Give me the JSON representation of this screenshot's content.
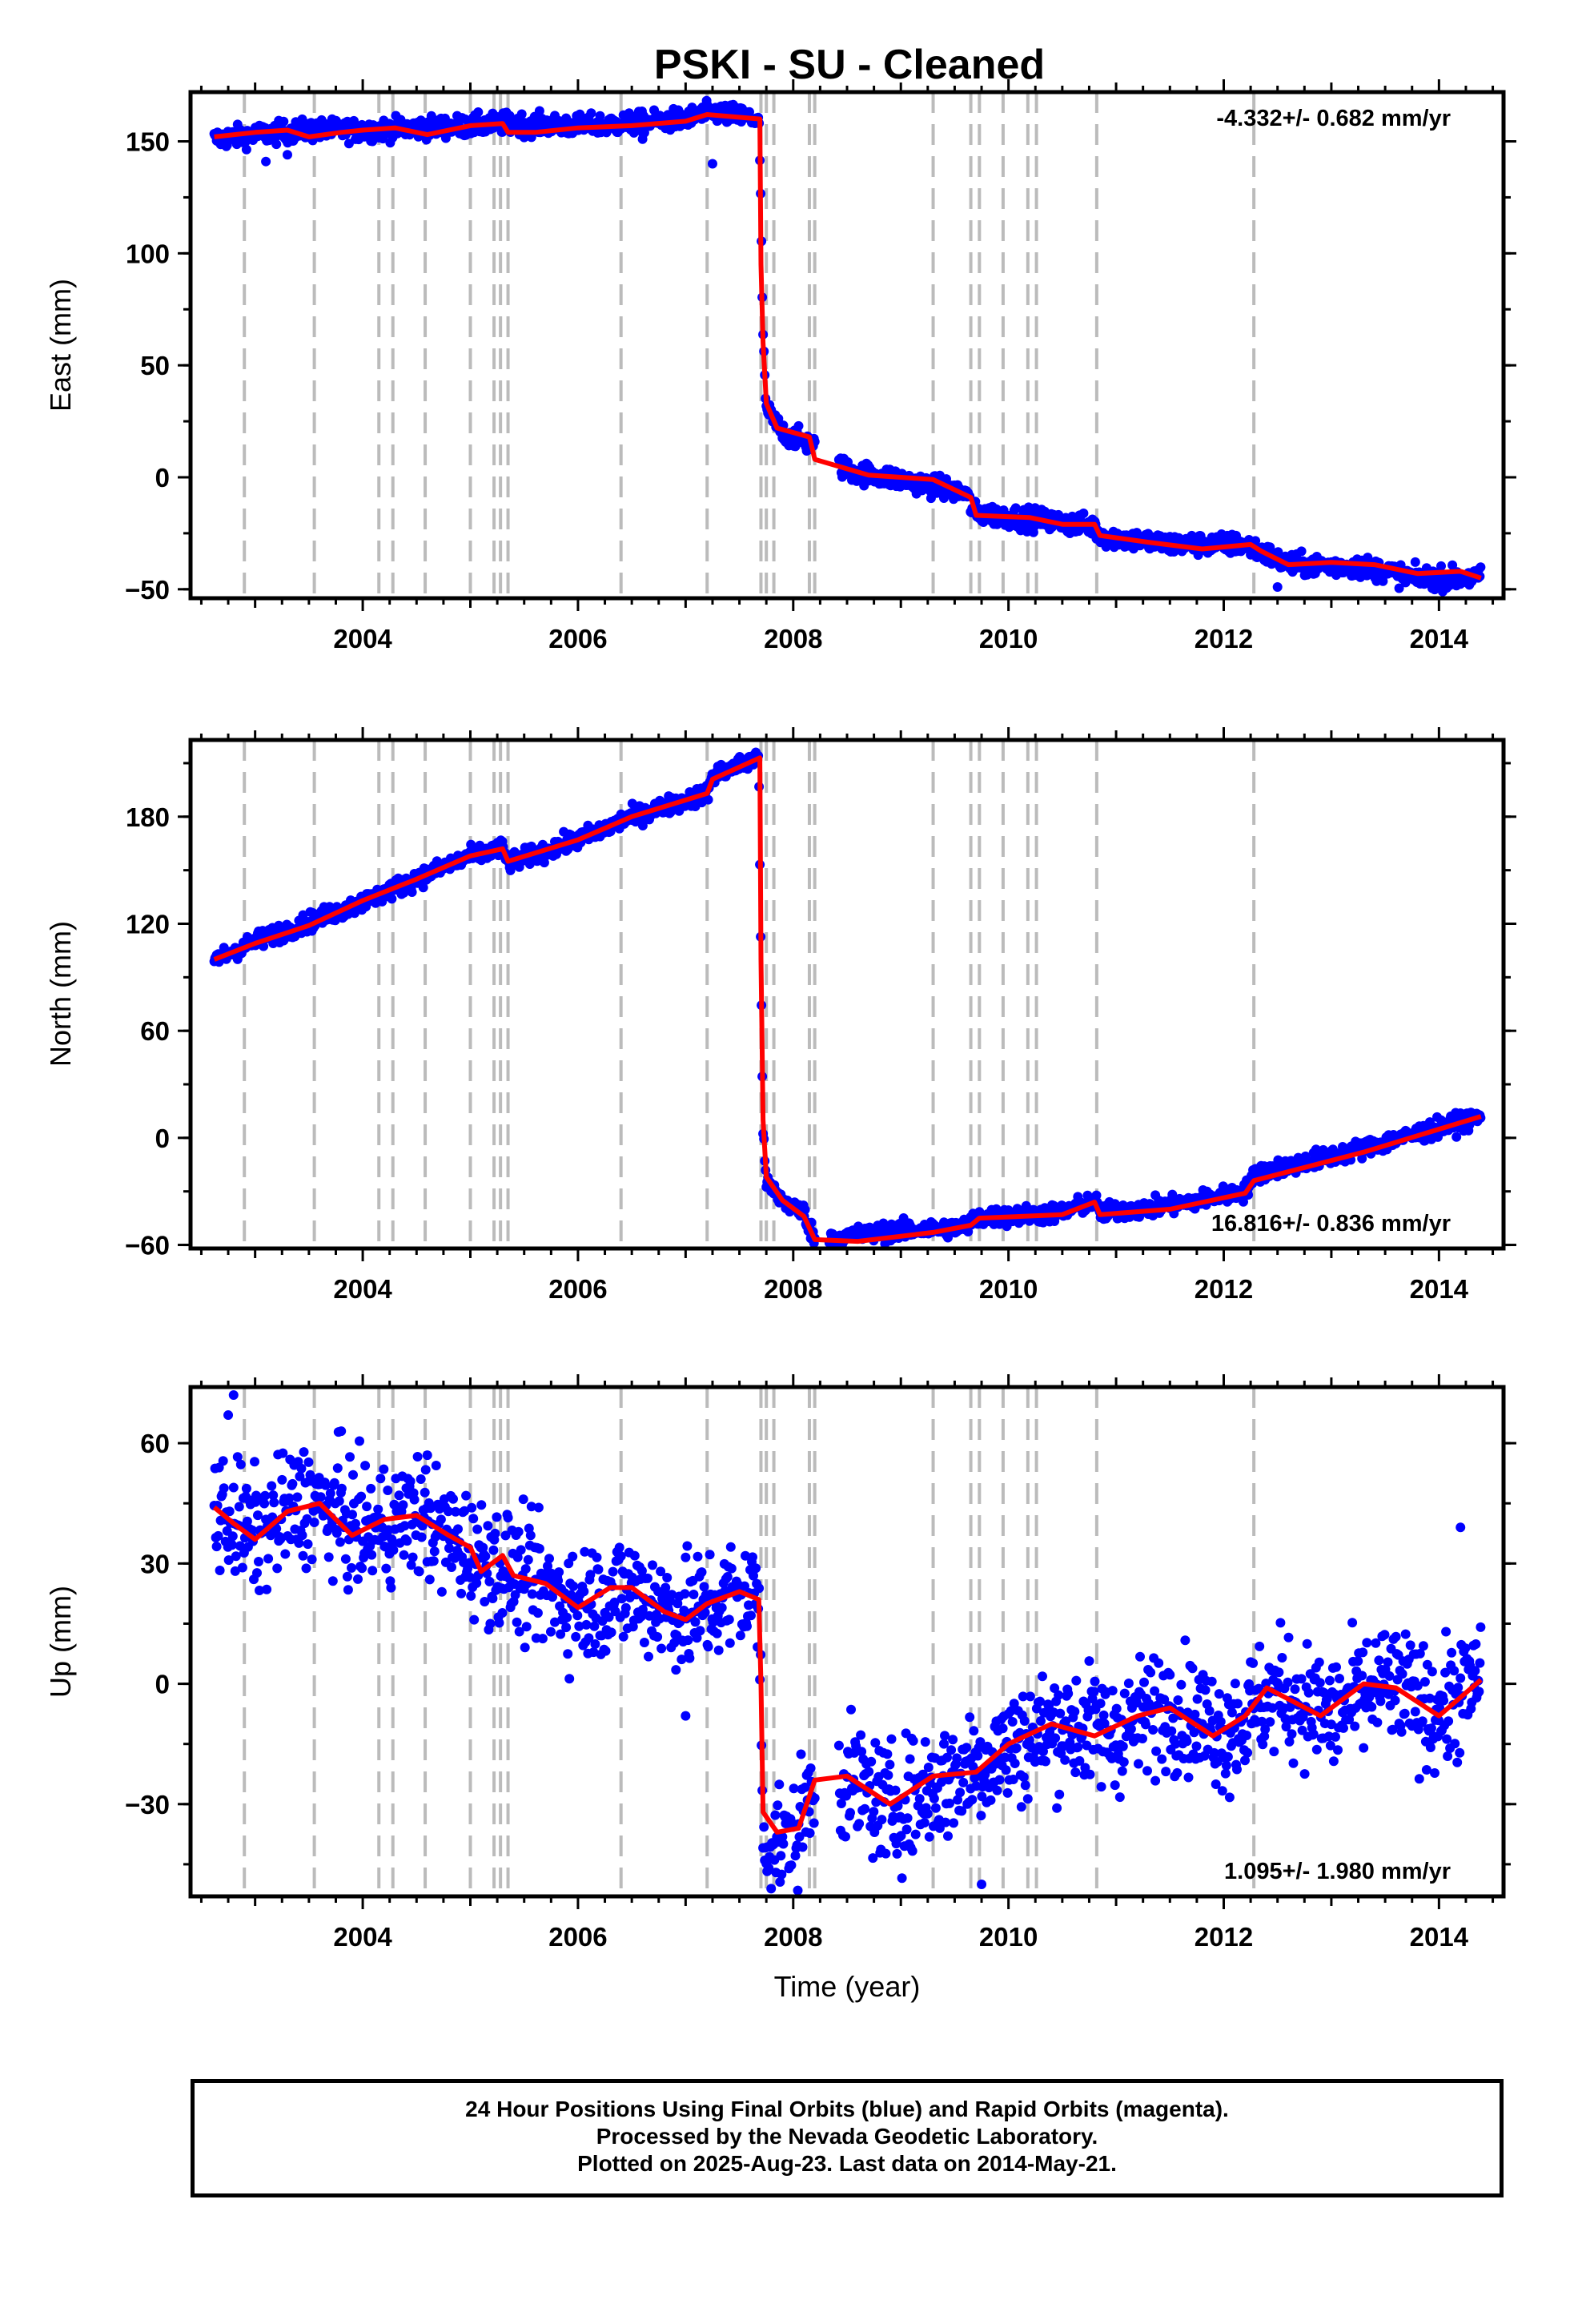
{
  "title": "PSKI  - SU - Cleaned",
  "colors": {
    "final": "#0000ff",
    "model": "#ff0000",
    "events": "#bbbbbb",
    "frame": "#000000"
  },
  "footer": {
    "line1": "24 Hour Positions Using Final Orbits (blue) and Rapid Orbits (magenta).",
    "line2": "Processed by the Nevada Geodetic Laboratory.",
    "line3": "Plotted on 2025-Aug-23. Last data on 2014-May-21."
  },
  "chart_data": [
    {
      "type": "scatter",
      "panel": "east",
      "title": "PSKI  - SU - Cleaned",
      "xlabel": "",
      "ylabel": "East (mm)",
      "xlim": [
        2002.4,
        2014.6
      ],
      "ylim": [
        -54,
        172
      ],
      "x_ticks": [
        2004,
        2006,
        2008,
        2010,
        2012,
        2014
      ],
      "y_ticks": [
        -50,
        0,
        50,
        100,
        150
      ],
      "grid": false,
      "rate_label": "-4.332+/- 0.682 mm/yr",
      "rate_position": "top-right",
      "event_lines": [
        2002.9,
        2003.55,
        2004.15,
        2004.28,
        2004.58,
        2005.0,
        2005.22,
        2005.28,
        2005.35,
        2006.4,
        2007.2,
        2007.7,
        2007.75,
        2007.82,
        2008.15,
        2008.2,
        2009.3,
        2009.65,
        2009.73,
        2009.95,
        2010.18,
        2010.26,
        2010.82,
        2012.28
      ],
      "series": [
        {
          "name": "Final Orbits (blue)",
          "kind": "points",
          "x_start": 2002.62,
          "x_end": 2014.39,
          "noise": 2.4,
          "breakpoints": [
            [
              2002.62,
              151
            ],
            [
              2003.0,
              153
            ],
            [
              2003.5,
              155
            ],
            [
              2004.0,
              155
            ],
            [
              2004.5,
              156
            ],
            [
              2005.0,
              157
            ],
            [
              2005.3,
              158
            ],
            [
              2006.0,
              157
            ],
            [
              2006.5,
              158
            ],
            [
              2007.0,
              160
            ],
            [
              2007.25,
              163
            ],
            [
              2007.68,
              160
            ],
            [
              2007.7,
              120
            ],
            [
              2007.72,
              60
            ],
            [
              2007.75,
              30
            ],
            [
              2007.9,
              20
            ],
            [
              2008.2,
              14
            ],
            [
              2008.5,
              3
            ],
            [
              2009.0,
              -1
            ],
            [
              2009.6,
              -7
            ],
            [
              2009.68,
              -16
            ],
            [
              2010.3,
              -19
            ],
            [
              2010.8,
              -22
            ],
            [
              2010.85,
              -26
            ],
            [
              2011.5,
              -30
            ],
            [
              2012.2,
              -30
            ],
            [
              2012.6,
              -39
            ],
            [
              2013.3,
              -40
            ],
            [
              2013.8,
              -45
            ],
            [
              2014.39,
              -45
            ]
          ],
          "outliers": [
            [
              2003.1,
              141
            ],
            [
              2003.3,
              144
            ],
            [
              2006.6,
              151
            ],
            [
              2007.25,
              140
            ],
            [
              2012.5,
              -49
            ]
          ]
        },
        {
          "name": "Model",
          "kind": "line",
          "breakpoints": [
            [
              2002.62,
              152
            ],
            [
              2003.0,
              154
            ],
            [
              2003.3,
              155
            ],
            [
              2003.5,
              152
            ],
            [
              2003.8,
              154
            ],
            [
              2004.0,
              155
            ],
            [
              2004.3,
              156
            ],
            [
              2004.6,
              153
            ],
            [
              2005.0,
              157
            ],
            [
              2005.3,
              158
            ],
            [
              2005.35,
              154
            ],
            [
              2005.6,
              154
            ],
            [
              2006.0,
              156
            ],
            [
              2006.5,
              157
            ],
            [
              2007.0,
              159
            ],
            [
              2007.2,
              162
            ],
            [
              2007.69,
              160
            ],
            [
              2007.7,
              95
            ],
            [
              2007.72,
              60
            ],
            [
              2007.75,
              33
            ],
            [
              2007.85,
              22
            ],
            [
              2008.15,
              18
            ],
            [
              2008.2,
              8
            ],
            [
              2008.7,
              1
            ],
            [
              2009.3,
              -1
            ],
            [
              2009.65,
              -9
            ],
            [
              2009.7,
              -17
            ],
            [
              2010.2,
              -18
            ],
            [
              2010.5,
              -21
            ],
            [
              2010.8,
              -21
            ],
            [
              2010.85,
              -26
            ],
            [
              2011.3,
              -29
            ],
            [
              2011.8,
              -32
            ],
            [
              2012.25,
              -30
            ],
            [
              2012.35,
              -33
            ],
            [
              2012.6,
              -39
            ],
            [
              2013.0,
              -38
            ],
            [
              2013.4,
              -39
            ],
            [
              2013.8,
              -43
            ],
            [
              2014.2,
              -42
            ],
            [
              2014.39,
              -45
            ]
          ]
        }
      ]
    },
    {
      "type": "scatter",
      "panel": "north",
      "title": "",
      "xlabel": "",
      "ylabel": "North (mm)",
      "xlim": [
        2002.4,
        2014.6
      ],
      "ylim": [
        -62,
        223
      ],
      "x_ticks": [
        2004,
        2006,
        2008,
        2010,
        2012,
        2014
      ],
      "y_ticks": [
        -60,
        0,
        60,
        120,
        180
      ],
      "grid": false,
      "rate_label": "16.816+/- 0.836 mm/yr",
      "rate_position": "bottom-right",
      "event_lines": [
        2002.9,
        2003.55,
        2004.15,
        2004.28,
        2004.58,
        2005.0,
        2005.22,
        2005.28,
        2005.35,
        2006.4,
        2007.2,
        2007.7,
        2007.75,
        2007.82,
        2008.15,
        2008.2,
        2009.3,
        2009.65,
        2009.73,
        2009.95,
        2010.18,
        2010.26,
        2010.82,
        2012.28
      ],
      "series": [
        {
          "name": "Final Orbits (blue)",
          "kind": "points",
          "x_start": 2002.62,
          "x_end": 2014.39,
          "noise": 2.6,
          "breakpoints": [
            [
              2002.62,
              100
            ],
            [
              2003.0,
              110
            ],
            [
              2003.5,
              121
            ],
            [
              2004.0,
              132
            ],
            [
              2004.5,
              145
            ],
            [
              2005.0,
              158
            ],
            [
              2005.3,
              162
            ],
            [
              2005.35,
              154
            ],
            [
              2006.0,
              167
            ],
            [
              2006.5,
              180
            ],
            [
              2007.2,
              193
            ],
            [
              2007.25,
              203
            ],
            [
              2007.68,
              213
            ],
            [
              2007.7,
              100
            ],
            [
              2007.72,
              0
            ],
            [
              2007.75,
              -25
            ],
            [
              2007.9,
              -35
            ],
            [
              2008.1,
              -42
            ],
            [
              2008.2,
              -57
            ],
            [
              2009.0,
              -52
            ],
            [
              2009.6,
              -50
            ],
            [
              2009.7,
              -45
            ],
            [
              2010.5,
              -42
            ],
            [
              2010.8,
              -35
            ],
            [
              2010.85,
              -42
            ],
            [
              2011.5,
              -38
            ],
            [
              2012.2,
              -30
            ],
            [
              2012.3,
              -20
            ],
            [
              2013.3,
              -6
            ],
            [
              2014.39,
              12
            ]
          ],
          "outliers": []
        },
        {
          "name": "Model",
          "kind": "line",
          "breakpoints": [
            [
              2002.62,
              100
            ],
            [
              2003.0,
              109
            ],
            [
              2003.5,
              119
            ],
            [
              2004.0,
              133
            ],
            [
              2004.5,
              145
            ],
            [
              2005.0,
              158
            ],
            [
              2005.3,
              162
            ],
            [
              2005.35,
              155
            ],
            [
              2006.0,
              167
            ],
            [
              2006.5,
              180
            ],
            [
              2007.2,
              193
            ],
            [
              2007.25,
              201
            ],
            [
              2007.69,
              213
            ],
            [
              2007.7,
              100
            ],
            [
              2007.72,
              10
            ],
            [
              2007.75,
              -22
            ],
            [
              2007.9,
              -35
            ],
            [
              2008.1,
              -44
            ],
            [
              2008.2,
              -57
            ],
            [
              2008.6,
              -58
            ],
            [
              2009.3,
              -53
            ],
            [
              2009.65,
              -49
            ],
            [
              2009.73,
              -45
            ],
            [
              2010.5,
              -43
            ],
            [
              2010.8,
              -36
            ],
            [
              2010.85,
              -43
            ],
            [
              2011.5,
              -40
            ],
            [
              2012.2,
              -31
            ],
            [
              2012.28,
              -24
            ],
            [
              2013.3,
              -8
            ],
            [
              2014.39,
              12
            ]
          ]
        }
      ]
    },
    {
      "type": "scatter",
      "panel": "up",
      "title": "",
      "xlabel": "Time (year)",
      "ylabel": "Up (mm)",
      "xlim": [
        2002.4,
        2014.6
      ],
      "ylim": [
        -53,
        74
      ],
      "x_ticks": [
        2004,
        2006,
        2008,
        2010,
        2012,
        2014
      ],
      "y_ticks": [
        -30,
        0,
        30,
        60
      ],
      "grid": false,
      "rate_label": "1.095+/- 1.980 mm/yr",
      "rate_position": "bottom-right",
      "event_lines": [
        2002.9,
        2003.55,
        2004.15,
        2004.28,
        2004.58,
        2005.0,
        2005.22,
        2005.28,
        2005.35,
        2006.4,
        2007.2,
        2007.7,
        2007.75,
        2007.82,
        2008.15,
        2008.2,
        2009.3,
        2009.65,
        2009.73,
        2009.95,
        2010.18,
        2010.26,
        2010.82,
        2012.28
      ],
      "series": [
        {
          "name": "Final Orbits (blue)",
          "kind": "points",
          "x_start": 2002.62,
          "x_end": 2014.39,
          "noise": 7.5,
          "breakpoints": [
            [
              2002.62,
              44
            ],
            [
              2003.0,
              37
            ],
            [
              2003.5,
              46
            ],
            [
              2004.0,
              38
            ],
            [
              2004.5,
              42
            ],
            [
              2005.0,
              33
            ],
            [
              2005.5,
              26
            ],
            [
              2006.0,
              20
            ],
            [
              2006.5,
              23
            ],
            [
              2007.0,
              17
            ],
            [
              2007.5,
              22
            ],
            [
              2007.68,
              22
            ],
            [
              2007.72,
              -38
            ],
            [
              2008.0,
              -40
            ],
            [
              2008.2,
              -24
            ],
            [
              2008.5,
              -24
            ],
            [
              2008.9,
              -31
            ],
            [
              2009.5,
              -23
            ],
            [
              2010.0,
              -16
            ],
            [
              2010.5,
              -10
            ],
            [
              2011.0,
              -12
            ],
            [
              2011.5,
              -5
            ],
            [
              2012.0,
              -12
            ],
            [
              2012.5,
              -2
            ],
            [
              2013.0,
              -8
            ],
            [
              2013.5,
              0
            ],
            [
              2014.0,
              -7
            ],
            [
              2014.39,
              1
            ]
          ],
          "outliers": [
            [
              2002.8,
              72
            ],
            [
              2002.75,
              67
            ],
            [
              2003.8,
              63
            ],
            [
              2004.6,
              57
            ],
            [
              2007.0,
              -8
            ],
            [
              2009.75,
              -50
            ],
            [
              2014.2,
              39
            ]
          ]
        },
        {
          "name": "Model",
          "kind": "line",
          "breakpoints": [
            [
              2002.62,
              44
            ],
            [
              2002.8,
              40
            ],
            [
              2003.0,
              36
            ],
            [
              2003.3,
              43
            ],
            [
              2003.6,
              45
            ],
            [
              2003.9,
              37
            ],
            [
              2004.2,
              41
            ],
            [
              2004.5,
              42
            ],
            [
              2004.8,
              37
            ],
            [
              2005.0,
              34
            ],
            [
              2005.1,
              28
            ],
            [
              2005.3,
              32
            ],
            [
              2005.4,
              27
            ],
            [
              2005.7,
              25
            ],
            [
              2006.0,
              19
            ],
            [
              2006.3,
              24
            ],
            [
              2006.5,
              24
            ],
            [
              2006.8,
              18
            ],
            [
              2007.0,
              16
            ],
            [
              2007.2,
              20
            ],
            [
              2007.5,
              23
            ],
            [
              2007.68,
              21
            ],
            [
              2007.7,
              0
            ],
            [
              2007.72,
              -32
            ],
            [
              2007.85,
              -37
            ],
            [
              2008.05,
              -36
            ],
            [
              2008.2,
              -24
            ],
            [
              2008.5,
              -23
            ],
            [
              2008.9,
              -30
            ],
            [
              2009.3,
              -23
            ],
            [
              2009.7,
              -22
            ],
            [
              2010.0,
              -15
            ],
            [
              2010.4,
              -10
            ],
            [
              2010.8,
              -13
            ],
            [
              2011.2,
              -8
            ],
            [
              2011.5,
              -6
            ],
            [
              2011.9,
              -13
            ],
            [
              2012.2,
              -8
            ],
            [
              2012.4,
              -1
            ],
            [
              2012.9,
              -8
            ],
            [
              2013.3,
              0
            ],
            [
              2013.6,
              -1
            ],
            [
              2014.0,
              -8
            ],
            [
              2014.39,
              1
            ]
          ]
        }
      ]
    }
  ]
}
